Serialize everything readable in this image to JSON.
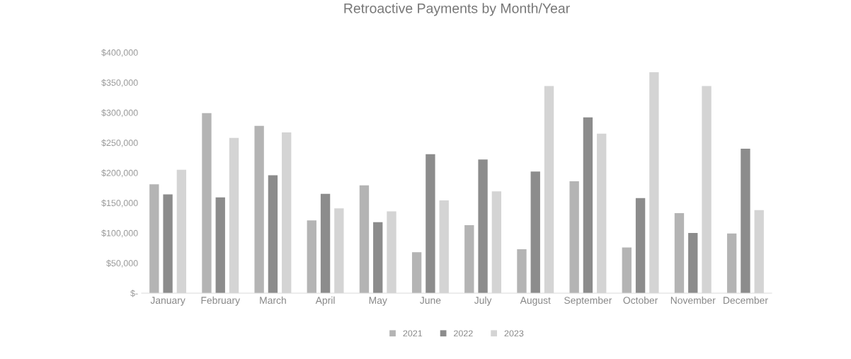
{
  "chart_data": {
    "type": "bar",
    "title": "Retroactive Payments by Month/Year",
    "categories": [
      "January",
      "February",
      "March",
      "April",
      "May",
      "June",
      "July",
      "August",
      "September",
      "October",
      "November",
      "December"
    ],
    "series": [
      {
        "name": "2021",
        "color": "#b4b4b4",
        "values": [
          181000,
          299000,
          278000,
          121000,
          179000,
          68000,
          113000,
          73000,
          186000,
          76000,
          133000,
          99000
        ]
      },
      {
        "name": "2022",
        "color": "#8c8c8c",
        "values": [
          164000,
          159000,
          196000,
          165000,
          118000,
          231000,
          222000,
          202000,
          292000,
          158000,
          100000,
          240000
        ]
      },
      {
        "name": "2023",
        "color": "#d4d4d4",
        "values": [
          205000,
          258000,
          267000,
          141000,
          136000,
          154000,
          169000,
          344000,
          265000,
          367000,
          344000,
          138000
        ]
      }
    ],
    "ylim": [
      0,
      400000
    ],
    "yticks": [
      {
        "value": 0,
        "label": "$-"
      },
      {
        "value": 50000,
        "label": "$50,000"
      },
      {
        "value": 100000,
        "label": "$100,000"
      },
      {
        "value": 150000,
        "label": "$150,000"
      },
      {
        "value": 200000,
        "label": "$200,000"
      },
      {
        "value": 250000,
        "label": "$250,000"
      },
      {
        "value": 300000,
        "label": "$300,000"
      },
      {
        "value": 350000,
        "label": "$350,000"
      },
      {
        "value": 400000,
        "label": "$400,000"
      }
    ],
    "grid": false,
    "legend": "bottom"
  }
}
